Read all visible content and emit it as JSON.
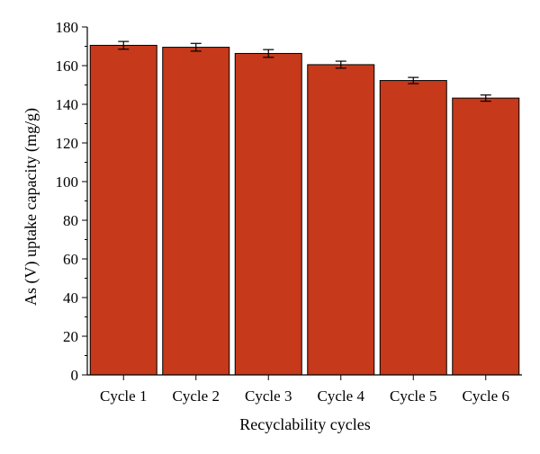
{
  "chart_data": {
    "type": "bar",
    "title": "",
    "xlabel": "Recyclability cycles",
    "ylabel": "As (V) uptake capacity (mg/g)",
    "categories": [
      "Cycle 1",
      "Cycle 2",
      "Cycle 3",
      "Cycle 4",
      "Cycle 5",
      "Cycle 6"
    ],
    "values": [
      170.5,
      169.5,
      166.3,
      160.5,
      152.3,
      143.2
    ],
    "errors": [
      2.0,
      2.0,
      2.0,
      1.8,
      1.6,
      1.6
    ],
    "ylim": [
      0,
      180
    ],
    "yticks": [
      0,
      20,
      40,
      60,
      80,
      100,
      120,
      140,
      160,
      180
    ],
    "grid": false,
    "colors": {
      "bar_fill": "#c6391a",
      "bar_edge": "#000000",
      "axis": "#000000"
    }
  }
}
